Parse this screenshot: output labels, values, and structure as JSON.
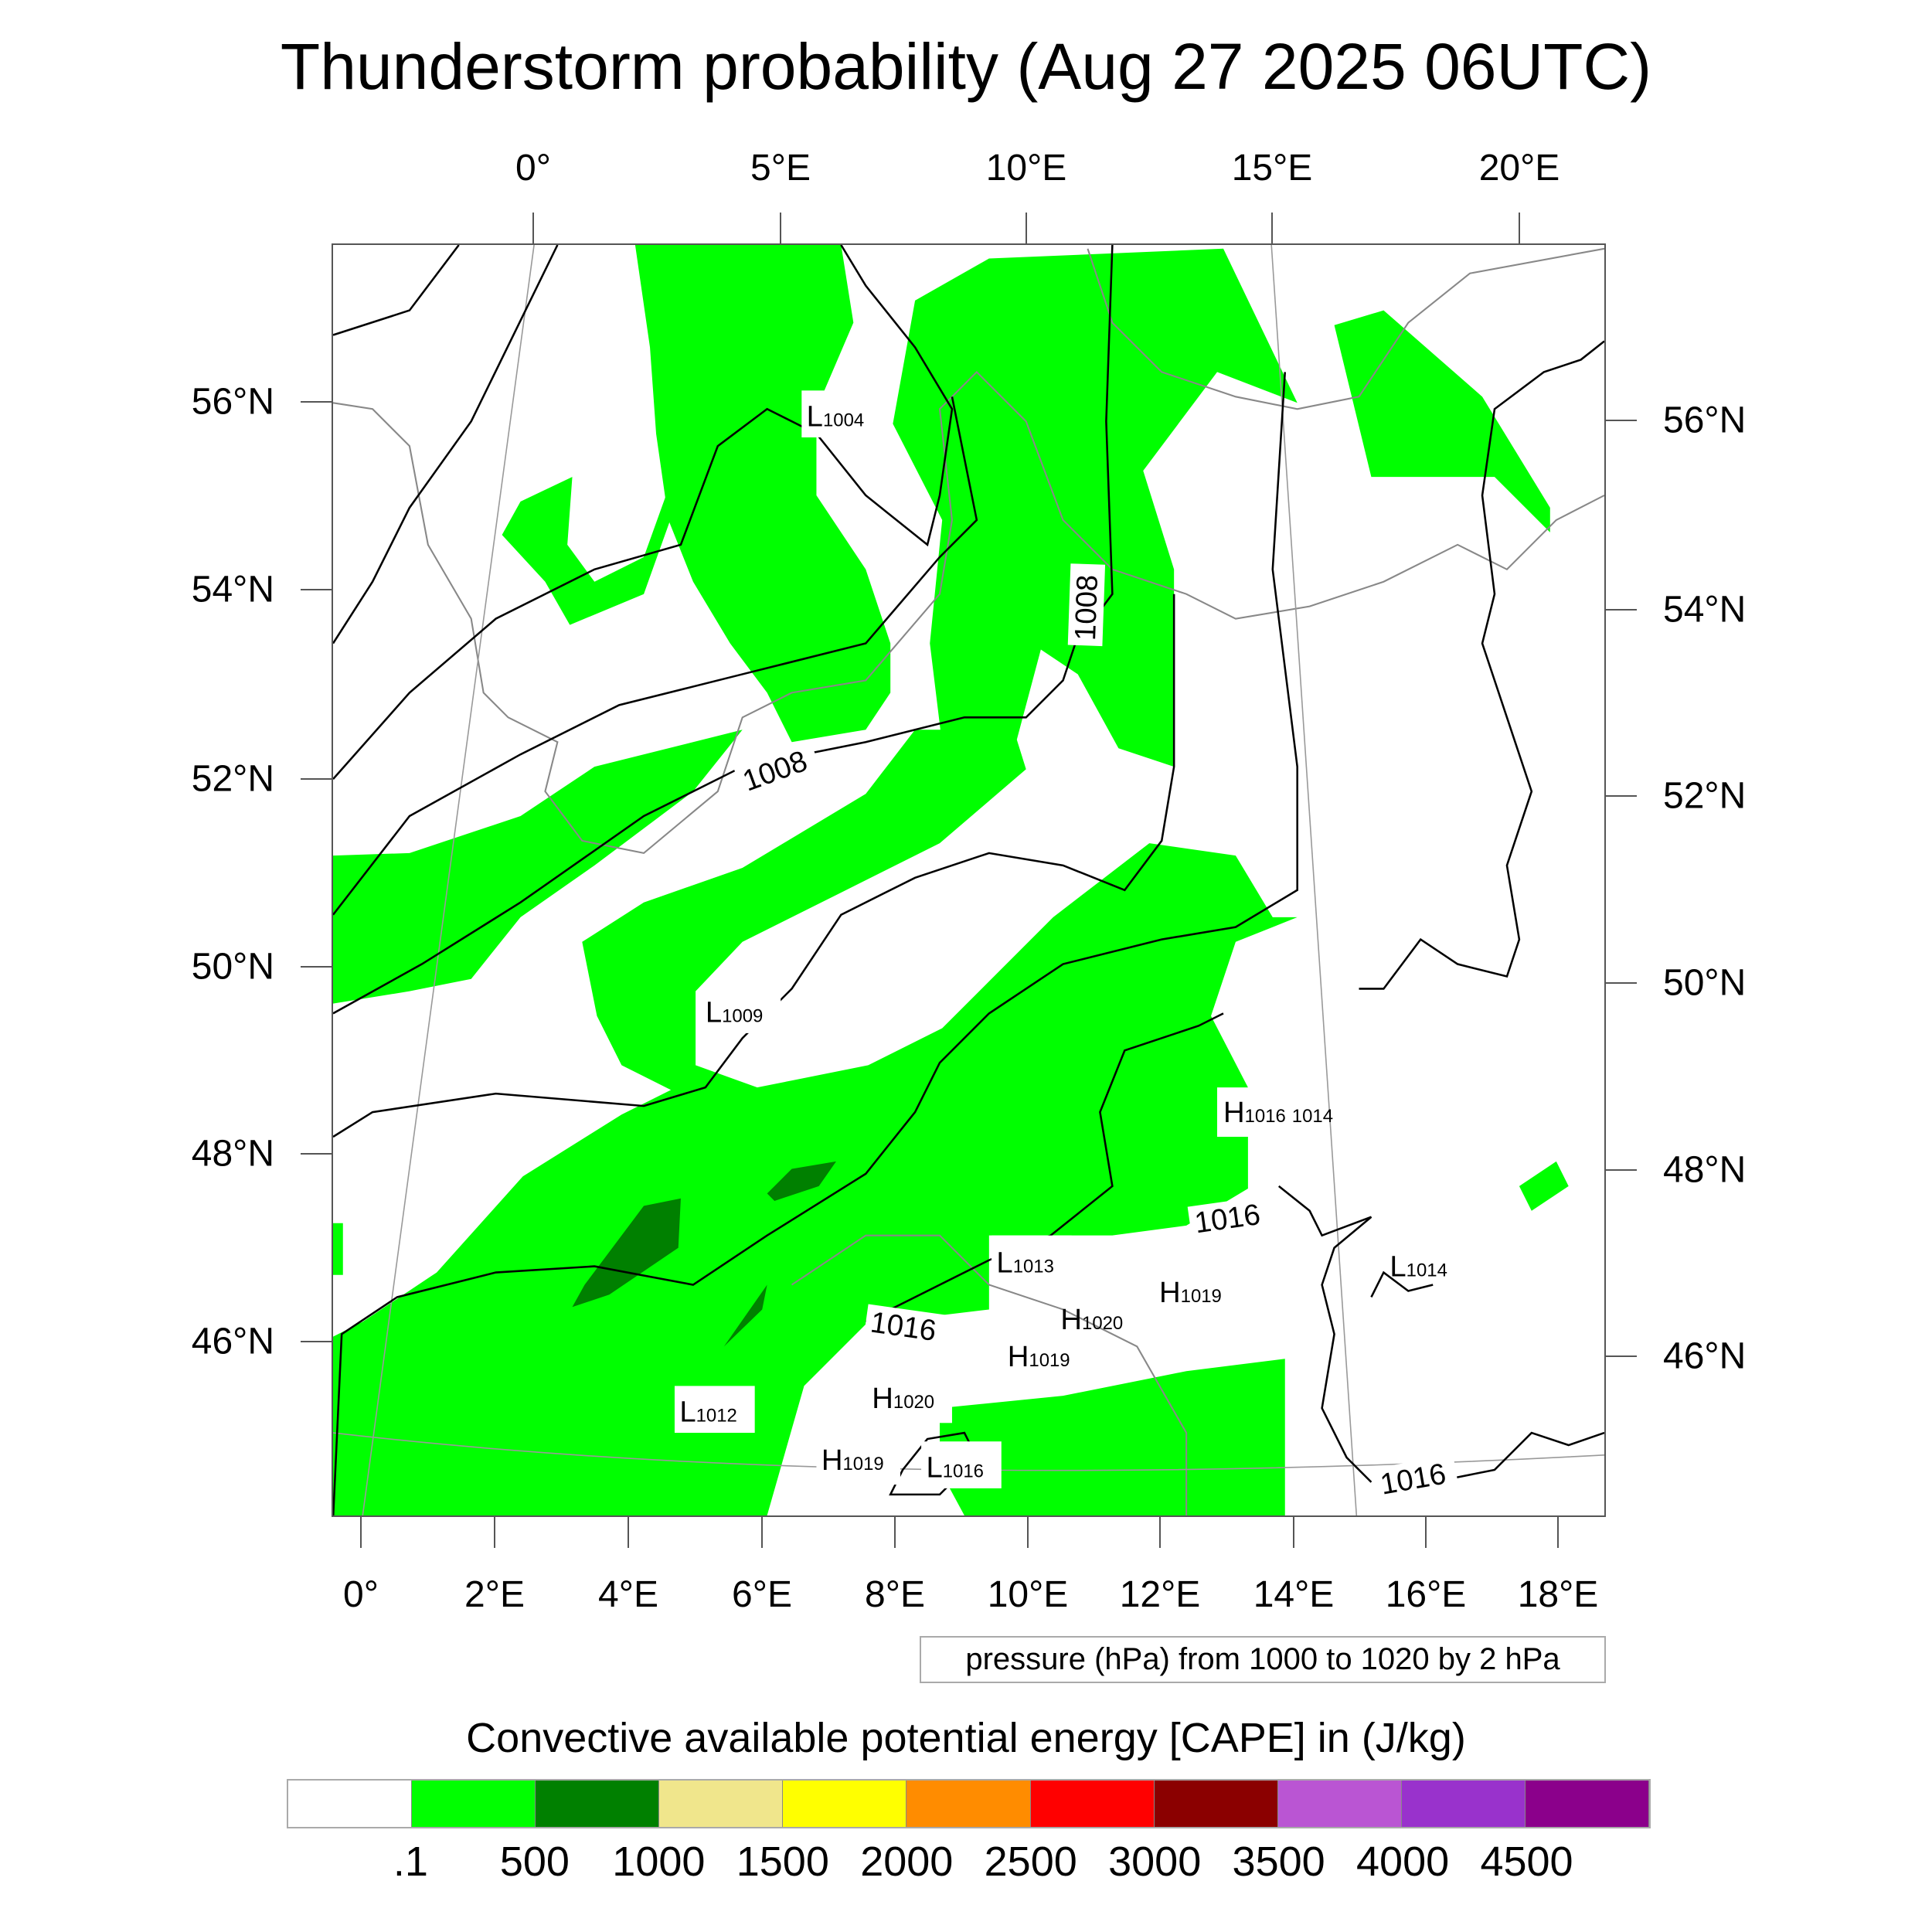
{
  "title": "Thunderstorm probability (Aug 27 2025 06UTC)",
  "top_lon_labels": [
    "0°",
    "5°E",
    "10°E",
    "15°E",
    "20°E"
  ],
  "bottom_lon_labels": [
    "0°",
    "2°E",
    "4°E",
    "6°E",
    "8°E",
    "10°E",
    "12°E",
    "14°E",
    "16°E",
    "18°E"
  ],
  "left_lat_labels": [
    "56°N",
    "54°N",
    "52°N",
    "50°N",
    "48°N",
    "46°N"
  ],
  "right_lat_labels": [
    "56°N",
    "54°N",
    "52°N",
    "50°N",
    "48°N",
    "46°N"
  ],
  "pressure_labels": {
    "l1004": {
      "sym": "L",
      "val": "1004"
    },
    "l1009": {
      "sym": "L",
      "val": "1009"
    },
    "l1012": {
      "sym": "L",
      "val": "1012"
    },
    "h1016": {
      "sym": "H",
      "val": "1016",
      "extra": "1014"
    },
    "l1013": {
      "sym": "L",
      "val": "1013"
    },
    "h1019a": {
      "sym": "H",
      "val": "1019"
    },
    "h1020a": {
      "sym": "H",
      "val": "1020"
    },
    "h1019b": {
      "sym": "H",
      "val": "1019"
    },
    "h1020b": {
      "sym": "H",
      "val": "1020"
    },
    "l1014": {
      "sym": "L",
      "val": "1014"
    },
    "h1019c": {
      "sym": "H",
      "val": "1019"
    },
    "l1016": {
      "sym": "L",
      "val": "1016"
    }
  },
  "contour_labels": {
    "c1008a": "1008",
    "c1008b": "1008",
    "c1016a": "1016",
    "c1016b": "1016",
    "c1016c": "1016"
  },
  "contour_legend": "pressure (hPa) from 1000 to 1020 by 2 hPa",
  "colorbar": {
    "title": "Convective available potential energy [CAPE] in (J/kg)",
    "colors": [
      "#ffffff",
      "#00ff00",
      "#008000",
      "#f0e68c",
      "#ffff00",
      "#ff8c00",
      "#ff0000",
      "#8b0000",
      "#ba55d3",
      "#9932cc",
      "#8b008b"
    ],
    "labels": [
      ".1",
      "500",
      "1000",
      "1500",
      "2000",
      "2500",
      "3000",
      "3500",
      "4000",
      "4500"
    ]
  }
}
